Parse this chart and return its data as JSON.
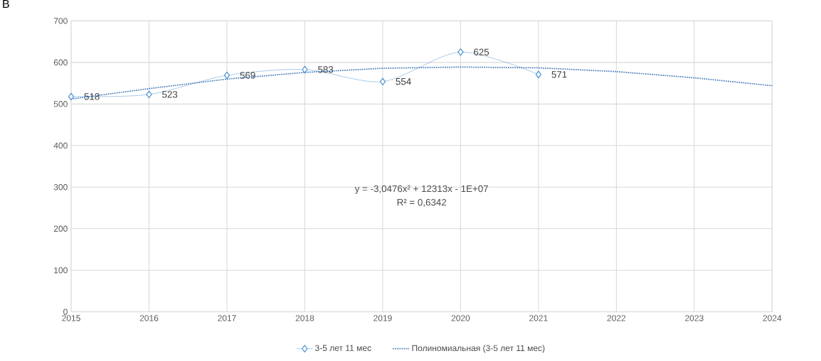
{
  "chart_data": {
    "type": "line",
    "annotations": [
      "В",
      "y = -3,0476x² + 12313x - 1E+07",
      "R² = 0,6342"
    ],
    "xlim": [
      2015,
      2024
    ],
    "xticks": [
      2015,
      2016,
      2017,
      2018,
      2019,
      2020,
      2021,
      2022,
      2023,
      2024
    ],
    "ylim": [
      0,
      700
    ],
    "yticks": [
      0,
      100,
      200,
      300,
      400,
      500,
      600,
      700
    ],
    "grid": true,
    "legend": "bottom",
    "series": [
      {
        "name": "3-5 лет 11 мес",
        "color": "#5b9bd5",
        "x": [
          2015,
          2016,
          2017,
          2018,
          2019,
          2020,
          2021
        ],
        "values": [
          518,
          523,
          569,
          583,
          554,
          625,
          571
        ],
        "marker": "diamond",
        "line_style": "solid",
        "data_labels": true
      },
      {
        "name": "Полиномиальная (3-5 лет 11 мес)",
        "color": "#4a7ebb",
        "x": [
          2015,
          2016,
          2017,
          2018,
          2019,
          2020,
          2021,
          2022,
          2023,
          2024
        ],
        "values": [
          512,
          537,
          560,
          576,
          586,
          589,
          587,
          578,
          563,
          544
        ],
        "marker": "none",
        "line_style": "dotted"
      }
    ]
  }
}
